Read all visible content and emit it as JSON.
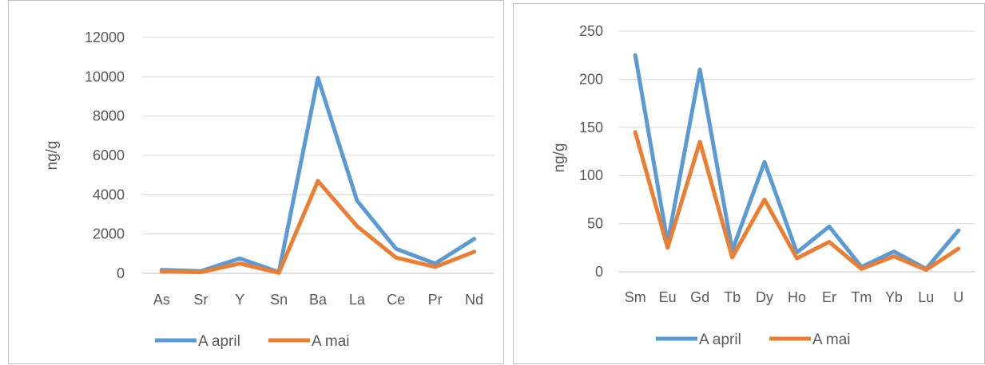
{
  "chart_data": [
    {
      "type": "line",
      "ylabel": "ng/g",
      "ylim": [
        0,
        12000
      ],
      "yticks": [
        0,
        2000,
        4000,
        6000,
        8000,
        10000,
        12000
      ],
      "categories": [
        "As",
        "Sr",
        "Y",
        "Sn",
        "Ba",
        "La",
        "Ce",
        "Pr",
        "Nd"
      ],
      "series": [
        {
          "name": "A april",
          "color": "#5b9bd5",
          "values": [
            180,
            110,
            760,
            60,
            9950,
            3700,
            1250,
            500,
            1750
          ]
        },
        {
          "name": "A mai",
          "color": "#ed7d31",
          "values": [
            90,
            60,
            500,
            30,
            4700,
            2400,
            800,
            330,
            1100
          ]
        }
      ],
      "grid": true,
      "legend": "bottom"
    },
    {
      "type": "line",
      "ylabel": "ng/g",
      "ylim": [
        0,
        250
      ],
      "yticks": [
        0,
        50,
        100,
        150,
        200,
        250
      ],
      "categories": [
        "Sm",
        "Eu",
        "Gd",
        "Tb",
        "Dy",
        "Ho",
        "Er",
        "Tm",
        "Yb",
        "Lu",
        "U"
      ],
      "series": [
        {
          "name": "A april",
          "color": "#5b9bd5",
          "values": [
            225,
            30,
            210,
            22,
            114,
            20,
            47,
            5,
            21,
            3,
            43
          ]
        },
        {
          "name": "A mai",
          "color": "#ed7d31",
          "values": [
            145,
            25,
            135,
            15,
            75,
            14,
            31,
            3,
            16,
            2,
            24
          ]
        }
      ],
      "grid": true,
      "legend": "bottom"
    }
  ]
}
